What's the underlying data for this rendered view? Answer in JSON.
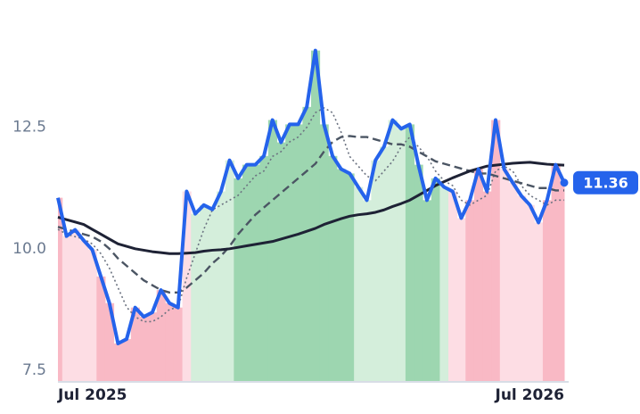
{
  "chart_data": {
    "type": "line",
    "categories": [
      "Jul 2025",
      null,
      null,
      null,
      null,
      null,
      null,
      null,
      null,
      null,
      null,
      null,
      null,
      null,
      null,
      null,
      null,
      null,
      null,
      null,
      null,
      null,
      null,
      null,
      null,
      null,
      null,
      null,
      null,
      null,
      null,
      null,
      null,
      null,
      null,
      null,
      null,
      null,
      null,
      null,
      null,
      null,
      null,
      null,
      null,
      null,
      null,
      null,
      null,
      null,
      null,
      null,
      null,
      null,
      null,
      null,
      null,
      null,
      null,
      "Jul 2026"
    ],
    "series": [
      {
        "color": "#2563eb",
        "style": "solid",
        "width": 4,
        "values": [
          11.05,
          10.26,
          10.39,
          10.17,
          9.98,
          9.43,
          8.88,
          8.05,
          8.14,
          8.79,
          8.6,
          8.69,
          9.15,
          8.88,
          8.79,
          11.18,
          10.72,
          10.9,
          10.81,
          11.18,
          11.82,
          11.45,
          11.73,
          11.73,
          11.91,
          12.65,
          12.19,
          12.56,
          12.56,
          12.92,
          14.08,
          12.56,
          11.91,
          11.64,
          11.55,
          11.27,
          11.0,
          11.82,
          12.1,
          12.65,
          12.47,
          12.56,
          11.73,
          11.0,
          11.45,
          11.27,
          11.18,
          10.63,
          11.0,
          11.64,
          11.18,
          12.65,
          11.64,
          11.36,
          11.09,
          10.9,
          10.54,
          11.0,
          11.73,
          11.36
        ]
      },
      {
        "color": "#6b7280",
        "style": "dotted",
        "width": 1.6,
        "values": [
          10.4,
          10.3,
          10.25,
          10.2,
          10.1,
          9.9,
          9.6,
          9.2,
          8.8,
          8.6,
          8.5,
          8.5,
          8.6,
          8.75,
          8.8,
          9.4,
          9.9,
          10.4,
          10.8,
          10.9,
          11.0,
          11.1,
          11.3,
          11.5,
          11.6,
          11.9,
          12.0,
          12.2,
          12.3,
          12.5,
          12.8,
          12.9,
          12.8,
          12.4,
          11.9,
          11.7,
          11.5,
          11.4,
          11.6,
          11.8,
          12.1,
          12.3,
          12.1,
          11.9,
          11.6,
          11.4,
          11.3,
          11.0,
          10.9,
          11.0,
          11.1,
          11.6,
          11.7,
          11.6,
          11.3,
          11.1,
          11.0,
          10.9,
          11.0,
          11.0
        ]
      },
      {
        "color": "#4b5563",
        "style": "dashed",
        "width": 2.4,
        "values": [
          10.45,
          10.4,
          10.35,
          10.3,
          10.25,
          10.15,
          10.0,
          9.8,
          9.65,
          9.5,
          9.35,
          9.25,
          9.15,
          9.1,
          9.1,
          9.2,
          9.35,
          9.5,
          9.7,
          9.85,
          10.05,
          10.3,
          10.5,
          10.7,
          10.85,
          11.0,
          11.15,
          11.3,
          11.45,
          11.6,
          11.75,
          12.0,
          12.2,
          12.3,
          12.32,
          12.3,
          12.3,
          12.25,
          12.2,
          12.15,
          12.15,
          12.1,
          12.0,
          11.9,
          11.8,
          11.75,
          11.7,
          11.65,
          11.6,
          11.55,
          11.55,
          11.5,
          11.45,
          11.4,
          11.35,
          11.3,
          11.25,
          11.25,
          11.2,
          11.2
        ]
      },
      {
        "color": "#1e2235",
        "style": "solid",
        "width": 3,
        "values": [
          10.65,
          10.6,
          10.55,
          10.5,
          10.4,
          10.3,
          10.2,
          10.1,
          10.05,
          10.0,
          9.97,
          9.94,
          9.92,
          9.9,
          9.9,
          9.91,
          9.92,
          9.95,
          9.97,
          9.98,
          10.0,
          10.03,
          10.06,
          10.09,
          10.12,
          10.15,
          10.2,
          10.25,
          10.3,
          10.36,
          10.42,
          10.5,
          10.56,
          10.62,
          10.67,
          10.7,
          10.72,
          10.75,
          10.8,
          10.87,
          10.93,
          11.0,
          11.1,
          11.2,
          11.3,
          11.38,
          11.46,
          11.53,
          11.6,
          11.65,
          11.7,
          11.72,
          11.74,
          11.76,
          11.77,
          11.78,
          11.76,
          11.74,
          11.73,
          11.72
        ]
      }
    ],
    "regime_colors": [
      "#f9b9c5",
      "#fddde4",
      "#fddde4",
      "#fddde4",
      "#fddde4",
      "#f9b9c5",
      "#f9b9c5",
      "#f9b9c5",
      "#f9b9c5",
      "#f9b9c5",
      "#f9b9c5",
      "#f9b9c5",
      "#f9b9c5",
      "#f9b9c5",
      "#f9b9c5",
      "#fddde4",
      "#d4eedb",
      "#d4eedb",
      "#d4eedb",
      "#d4eedb",
      "#d4eedb",
      "#9dd6b0",
      "#9dd6b0",
      "#9dd6b0",
      "#9dd6b0",
      "#9dd6b0",
      "#9dd6b0",
      "#9dd6b0",
      "#9dd6b0",
      "#9dd6b0",
      "#9dd6b0",
      "#9dd6b0",
      "#9dd6b0",
      "#9dd6b0",
      "#9dd6b0",
      "#d4eedb",
      "#d4eedb",
      "#d4eedb",
      "#d4eedb",
      "#d4eedb",
      "#d4eedb",
      "#9dd6b0",
      "#9dd6b0",
      "#9dd6b0",
      "#9dd6b0",
      "#d4eedb",
      "#fddde4",
      "#fddde4",
      "#f9b9c5",
      "#f9b9c5",
      "#f9b9c5",
      "#f9b9c5",
      "#fddde4",
      "#fddde4",
      "#fddde4",
      "#fddde4",
      "#fddde4",
      "#f9b9c5",
      "#f9b9c5",
      "#f9b9c5"
    ],
    "ylim": [
      7.26,
      14.9
    ],
    "yticks": [
      7.5,
      {
        "value": 10,
        "label": "10.0"
      },
      12.5
    ],
    "last_value_color": "#2563eb"
  }
}
